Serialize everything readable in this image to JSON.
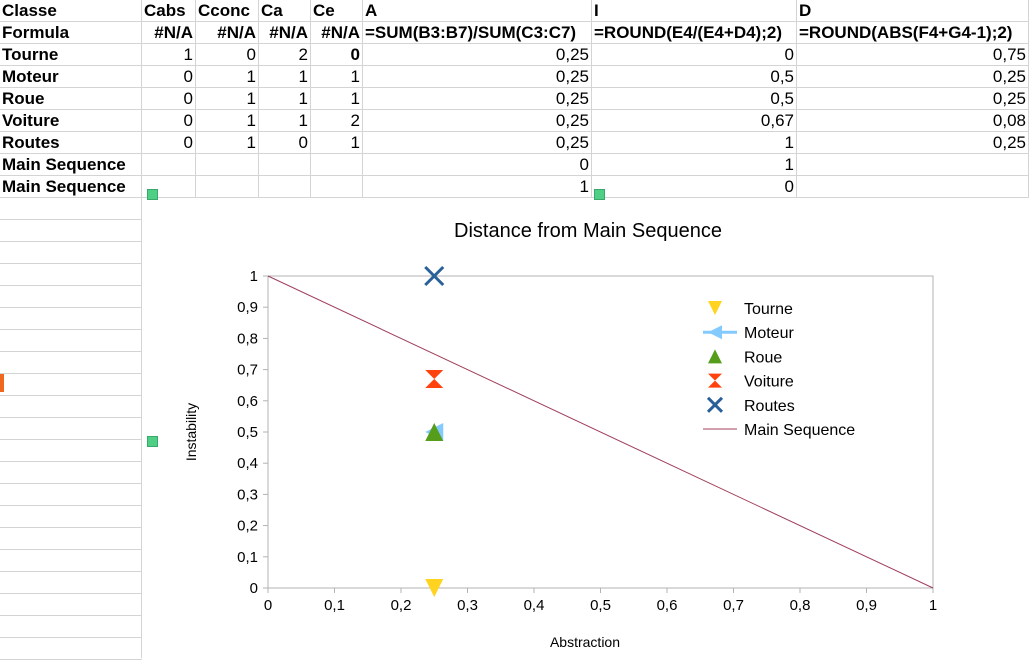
{
  "spreadsheet": {
    "header": [
      "Classe",
      "Cabs",
      "Cconc",
      "Ca",
      "Ce",
      "A",
      "I",
      "D"
    ],
    "formula_row": [
      "Formula",
      "#N/A",
      "#N/A",
      "#N/A",
      "#N/A",
      "=SUM(B3:B7)/SUM(C3:C7)",
      "=ROUND(E4/(E4+D4);2)",
      "=ROUND(ABS(F4+G4-1);2)"
    ],
    "rows": [
      [
        "Tourne",
        "1",
        "0",
        "2",
        "0",
        "0,25",
        "0",
        "0,75"
      ],
      [
        "Moteur",
        "0",
        "1",
        "1",
        "1",
        "0,25",
        "0,5",
        "0,25"
      ],
      [
        "Roue",
        "0",
        "1",
        "1",
        "1",
        "0,25",
        "0,5",
        "0,25"
      ],
      [
        "Voiture",
        "0",
        "1",
        "1",
        "2",
        "0,25",
        "0,67",
        "0,08"
      ],
      [
        "Routes",
        "0",
        "1",
        "0",
        "1",
        "0,25",
        "1",
        "0,25"
      ],
      [
        "Main Sequence",
        "",
        "",
        "",
        "",
        "0",
        "1",
        ""
      ],
      [
        "Main Sequence",
        "",
        "",
        "",
        "",
        "1",
        "0",
        ""
      ]
    ]
  },
  "chart_data": {
    "type": "scatter",
    "title": "Distance from Main Sequence",
    "xlabel": "Abstraction",
    "ylabel": "Instability",
    "xlim": [
      0,
      1
    ],
    "ylim": [
      0,
      1
    ],
    "x_ticks": [
      "0",
      "0,1",
      "0,2",
      "0,3",
      "0,4",
      "0,5",
      "0,6",
      "0,7",
      "0,8",
      "0,9",
      "1"
    ],
    "y_ticks": [
      "0",
      "0,1",
      "0,2",
      "0,3",
      "0,4",
      "0,5",
      "0,6",
      "0,7",
      "0,8",
      "0,9",
      "1"
    ],
    "grid": false,
    "legend": "top-right",
    "series": [
      {
        "name": "Tourne",
        "x": [
          0.25
        ],
        "y": [
          0
        ],
        "marker": "triangle-down",
        "color": "#ffd320"
      },
      {
        "name": "Moteur",
        "x": [
          0.25
        ],
        "y": [
          0.5
        ],
        "marker": "triangle-left",
        "color": "#83caff"
      },
      {
        "name": "Roue",
        "x": [
          0.25
        ],
        "y": [
          0.5
        ],
        "marker": "triangle-up",
        "color": "#579d1c"
      },
      {
        "name": "Voiture",
        "x": [
          0.25
        ],
        "y": [
          0.67
        ],
        "marker": "hourglass",
        "color": "#ff420e"
      },
      {
        "name": "Routes",
        "x": [
          0.25
        ],
        "y": [
          1
        ],
        "marker": "x",
        "color": "#2a6099"
      },
      {
        "name": "Main Sequence",
        "x": [
          0,
          1
        ],
        "y": [
          1,
          0
        ],
        "marker": "line",
        "color": "#a0405a"
      }
    ]
  }
}
